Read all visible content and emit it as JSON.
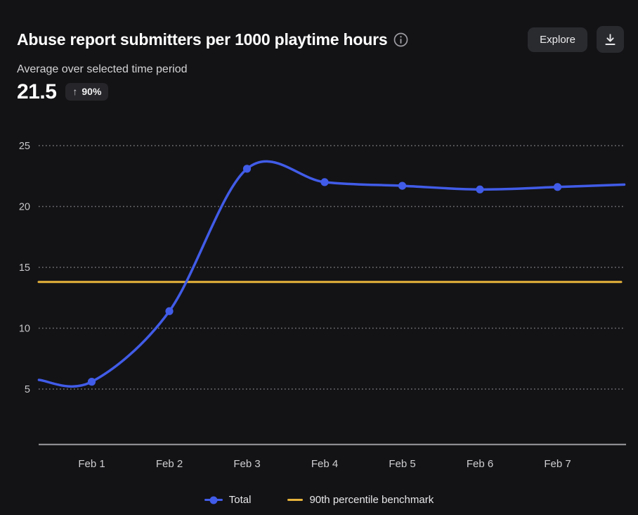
{
  "header": {
    "title": "Abuse report submitters per 1000 playtime hours",
    "info_icon": "info-circle",
    "explore_label": "Explore",
    "download_icon": "download-tray-arrow"
  },
  "summary": {
    "label": "Average over selected time period",
    "value": "21.5",
    "delta_arrow": "↑",
    "delta": "90%",
    "delta_direction": "up"
  },
  "chart_data": {
    "type": "line",
    "title": "Abuse report submitters per 1000 playtime hours",
    "categories": [
      "Feb 1",
      "Feb 2",
      "Feb 3",
      "Feb 4",
      "Feb 5",
      "Feb 6",
      "Feb 7"
    ],
    "series": [
      {
        "name": "Total",
        "color": "#415ce8",
        "values": [
          5.6,
          11.4,
          23.1,
          22.0,
          21.7,
          21.4,
          21.6
        ],
        "edge_start": {
          "slot": 0.32,
          "value": 5.75
        },
        "edge_end": {
          "slot": 7.86,
          "value": 21.8
        }
      }
    ],
    "benchmark": {
      "name": "90th percentile benchmark",
      "value": 13.8,
      "color": "#e6b33b"
    },
    "y_ticks": [
      5,
      10,
      15,
      20,
      25
    ],
    "ylim": [
      0.5,
      26
    ],
    "xlabel": "",
    "ylabel": "",
    "grid": "horizontal-dotted",
    "legend_position": "bottom"
  },
  "legend": {
    "items": [
      {
        "label": "Total",
        "marker": "line-dot",
        "color": "#415ce8"
      },
      {
        "label": "90th percentile benchmark",
        "marker": "line",
        "color": "#e6b33b"
      }
    ]
  },
  "colors": {
    "background": "#131316",
    "text_primary": "#ffffff",
    "text_secondary": "#d4d4d6",
    "tick_label": "#c7c7ca",
    "gridline": "#7a7a7e",
    "axis_line": "#9b9ba0",
    "button_bg": "#2a2b2f",
    "badge_bg": "#26262a",
    "series_blue": "#415ce8",
    "benchmark_yellow": "#e6b33b"
  }
}
